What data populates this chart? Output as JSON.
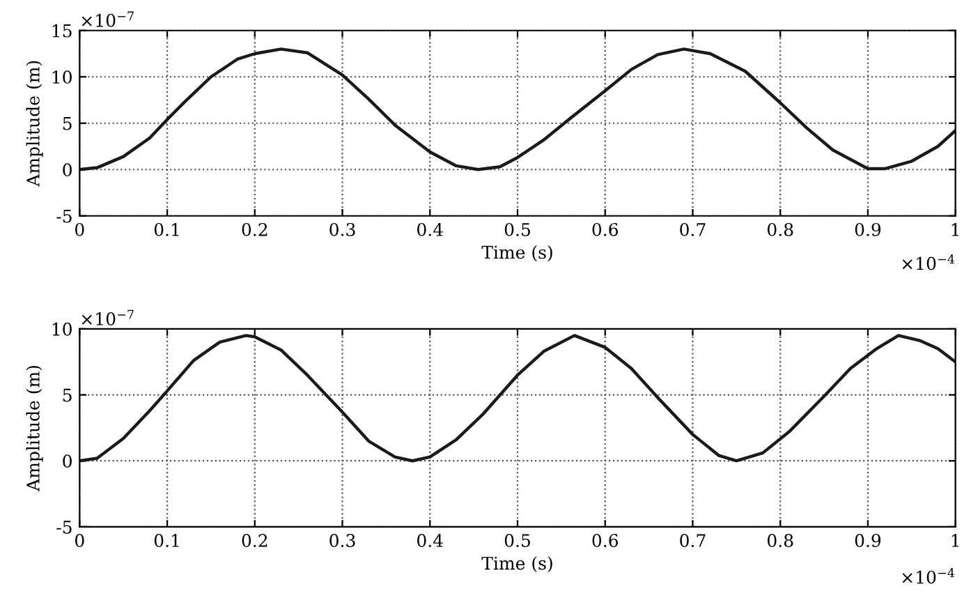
{
  "chart_data": [
    {
      "type": "line",
      "xlabel": "Time (s)",
      "ylabel": "Amplitude (m)",
      "xlim": [
        0,
        1
      ],
      "xticks": [
        0,
        0.1,
        0.2,
        0.3,
        0.4,
        0.5,
        0.6,
        0.7,
        0.8,
        0.9,
        1
      ],
      "ylim": [
        -5,
        15
      ],
      "yticks": [
        -5,
        0,
        5,
        10,
        15
      ],
      "grid": true,
      "line_style": "solid",
      "marker": "none",
      "annotations": [
        "×10$^{−7}$",
        "×10$^{−4}$"
      ],
      "series": [
        {
          "color": "#1a1a1a",
          "x": [
            0,
            0.02,
            0.05,
            0.08,
            0.1,
            0.12,
            0.15,
            0.18,
            0.2,
            0.23,
            0.26,
            0.3,
            0.33,
            0.36,
            0.4,
            0.43,
            0.455,
            0.48,
            0.5,
            0.53,
            0.56,
            0.6,
            0.63,
            0.66,
            0.69,
            0.72,
            0.76,
            0.8,
            0.83,
            0.86,
            0.9,
            0.92,
            0.95,
            0.98,
            1.0
          ],
          "values": [
            0,
            0.2,
            1.4,
            3.4,
            5.4,
            7.3,
            10,
            11.9,
            12.5,
            13,
            12.6,
            10.2,
            7.6,
            4.8,
            1.9,
            0.4,
            0,
            0.3,
            1.3,
            3.2,
            5.5,
            8.5,
            10.8,
            12.4,
            13,
            12.5,
            10.6,
            7.2,
            4.5,
            2.1,
            0.1,
            0.1,
            0.9,
            2.5,
            4.2
          ]
        }
      ]
    },
    {
      "type": "line",
      "xlabel": "Time (s)",
      "ylabel": "Amplitude (m)",
      "xlim": [
        0,
        1
      ],
      "xticks": [
        0,
        0.1,
        0.2,
        0.3,
        0.4,
        0.5,
        0.6,
        0.7,
        0.8,
        0.9,
        1
      ],
      "ylim": [
        -5,
        10
      ],
      "yticks": [
        -5,
        0,
        5,
        10
      ],
      "grid": true,
      "line_style": "solid",
      "marker": "none",
      "annotations": [
        "×10$^{−7}$",
        "×10$^{−4}$"
      ],
      "series": [
        {
          "color": "#1a1a1a",
          "x": [
            0,
            0.02,
            0.05,
            0.08,
            0.1,
            0.13,
            0.16,
            0.19,
            0.2,
            0.23,
            0.26,
            0.3,
            0.33,
            0.36,
            0.38,
            0.4,
            0.43,
            0.46,
            0.5,
            0.53,
            0.565,
            0.6,
            0.63,
            0.66,
            0.7,
            0.73,
            0.75,
            0.78,
            0.81,
            0.85,
            0.88,
            0.91,
            0.935,
            0.96,
            0.98,
            1.0
          ],
          "values": [
            0,
            0.2,
            1.7,
            3.8,
            5.3,
            7.6,
            9,
            9.5,
            9.4,
            8.4,
            6.5,
            3.7,
            1.5,
            0.3,
            0,
            0.3,
            1.6,
            3.5,
            6.5,
            8.3,
            9.5,
            8.6,
            7,
            4.8,
            2,
            0.4,
            0,
            0.6,
            2.2,
            4.9,
            7,
            8.5,
            9.5,
            9.1,
            8.5,
            7.5
          ]
        }
      ]
    }
  ]
}
